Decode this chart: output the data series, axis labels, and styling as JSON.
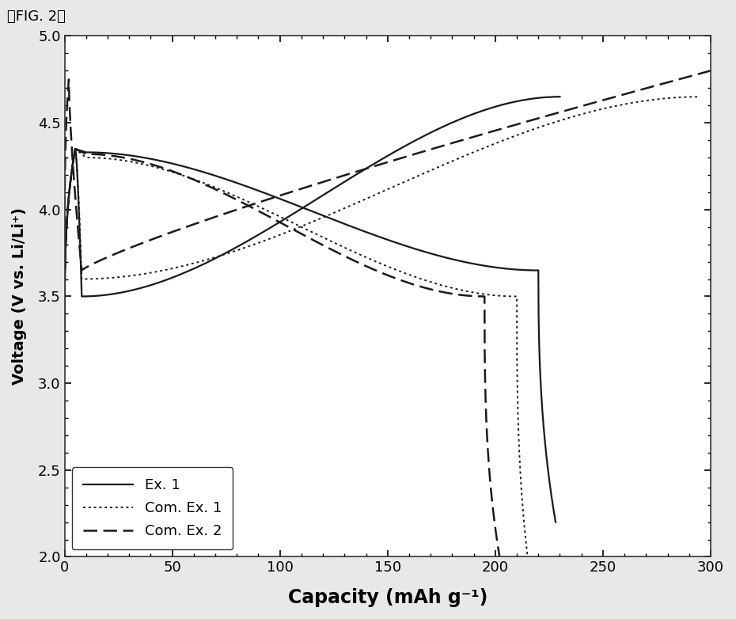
{
  "xlabel": "Capacity (mAh g⁻¹)",
  "ylabel": "Voltage (V vs. Li/Li⁺)",
  "xlim": [
    0,
    300
  ],
  "ylim": [
    2.0,
    5.0
  ],
  "xticks": [
    0,
    50,
    100,
    150,
    200,
    250,
    300
  ],
  "yticks": [
    2.0,
    2.5,
    3.0,
    3.5,
    4.0,
    4.5,
    5.0
  ],
  "legend": [
    "Ex. 1",
    "Com. Ex. 1",
    "Com. Ex. 2"
  ],
  "fig_label": "《FIG. 2》",
  "background_color": "#ffffff",
  "outer_background": "#e8e8e8"
}
